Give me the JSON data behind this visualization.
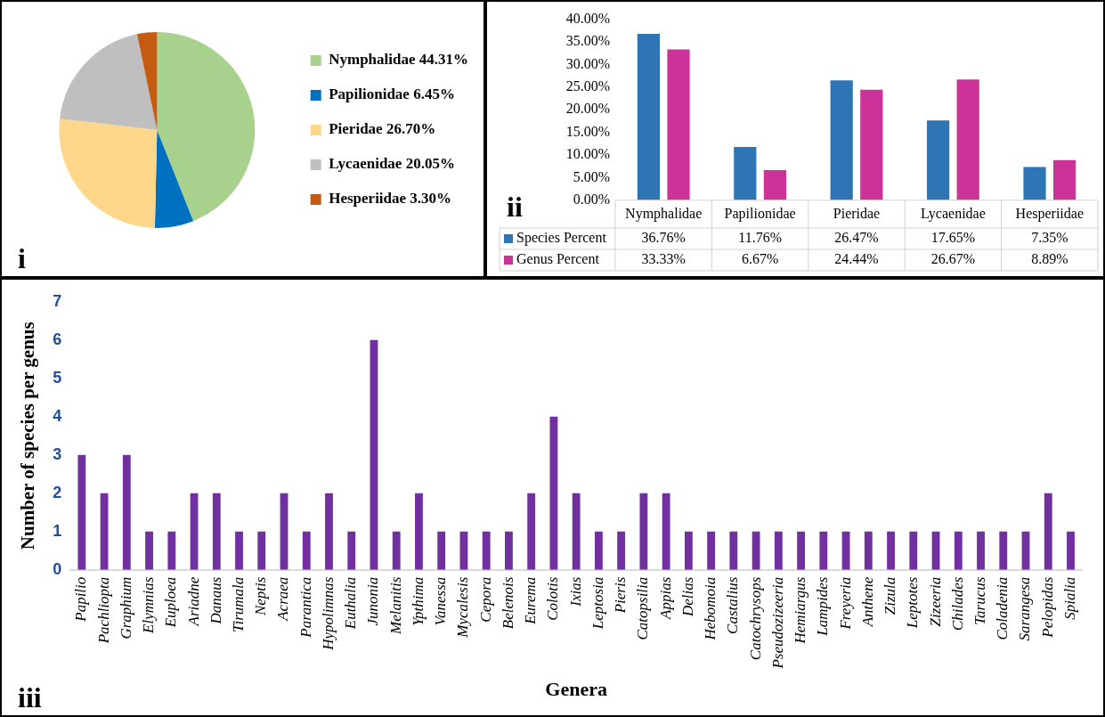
{
  "chart_data": [
    {
      "type": "pie",
      "categories": [
        "Nymphalidae 44.31%",
        "Papilionidae 6.45%",
        "Pieridae 26.70%",
        "Lycaenidae 20.05%",
        "Hesperiidae 3.30%"
      ],
      "values": [
        44.31,
        6.45,
        26.7,
        20.05,
        3.3
      ],
      "colors": [
        "#a9d18e",
        "#0070c0",
        "#ffd78a",
        "#bfbfbf",
        "#c55a11"
      ],
      "legend": "right",
      "annotations": [
        "i"
      ]
    },
    {
      "type": "bar",
      "categories": [
        "Nymphalidae",
        "Papilionidae",
        "Pieridae",
        "Lycaenidae",
        "Hesperiidae"
      ],
      "series": [
        {
          "name": "Species Percent",
          "color": "#2e75b6",
          "values": [
            36.76,
            11.76,
            26.47,
            17.65,
            7.35
          ],
          "value_labels": [
            "36.76%",
            "11.76%",
            "26.47%",
            "17.65%",
            "7.35%"
          ]
        },
        {
          "name": "Genus Percent",
          "color": "#cc3399",
          "values": [
            33.33,
            6.67,
            24.44,
            26.67,
            8.89
          ],
          "value_labels": [
            "33.33%",
            "6.67%",
            "24.44%",
            "26.67%",
            "8.89%"
          ]
        }
      ],
      "ylim": [
        0,
        40
      ],
      "yticks": [
        {
          "value": 0,
          "label": "0.00%"
        },
        {
          "value": 5,
          "label": "5.00%"
        },
        {
          "value": 10,
          "label": "10.00%"
        },
        {
          "value": 15,
          "label": "15.00%"
        },
        {
          "value": 20,
          "label": "20.00%"
        },
        {
          "value": 25,
          "label": "25.00%"
        },
        {
          "value": 30,
          "label": "30.00%"
        },
        {
          "value": 35,
          "label": "35.00%"
        },
        {
          "value": 40,
          "label": "40.00%"
        }
      ],
      "grid": false,
      "legend": "bottom",
      "annotations": [
        "ii"
      ]
    },
    {
      "type": "bar",
      "categories": [
        "Papilio",
        "Pachliopta",
        "Graphium",
        "Elymnias",
        "Euploea",
        "Ariadne",
        "Danaus",
        "Tirumala",
        "Neptis",
        "Acraea",
        "Parantica",
        "Hypolimnas",
        "Euthalia",
        "Junonia",
        "Melanitis",
        "Ypthima",
        "Vanessa",
        "Mycalesis",
        "Cepora",
        "Belenois",
        "Eurema",
        "Colotis",
        "Ixias",
        "Leptosia",
        "Pieris",
        "Catopsilia",
        "Appias",
        "Delias",
        "Hebomoia",
        "Castalius",
        "Catochrysops",
        "Pseudozizeeria",
        "Hemiargus",
        "Lampides",
        "Freyeria",
        "Anthene",
        "Zizula",
        "Leptotes",
        "Zizeeria",
        "Chilades",
        "Tarucus",
        "Coladenia",
        "Sarangesa",
        "Pelopidas",
        "Spialia"
      ],
      "series": [
        {
          "color": "#7030a0",
          "values": [
            3,
            2,
            3,
            1,
            1,
            2,
            2,
            1,
            1,
            2,
            1,
            2,
            1,
            6,
            1,
            2,
            1,
            1,
            1,
            1,
            2,
            4,
            2,
            1,
            1,
            2,
            2,
            1,
            1,
            1,
            1,
            1,
            1,
            1,
            1,
            1,
            1,
            1,
            1,
            1,
            1,
            1,
            1,
            2,
            1
          ]
        }
      ],
      "ylim": [
        0,
        7
      ],
      "yticks": [
        0,
        1,
        2,
        3,
        4,
        5,
        6,
        7
      ],
      "grid": false,
      "xlabel": "Genera",
      "ylabel": "Number of species per genus",
      "annotations": [
        "iii"
      ]
    }
  ]
}
